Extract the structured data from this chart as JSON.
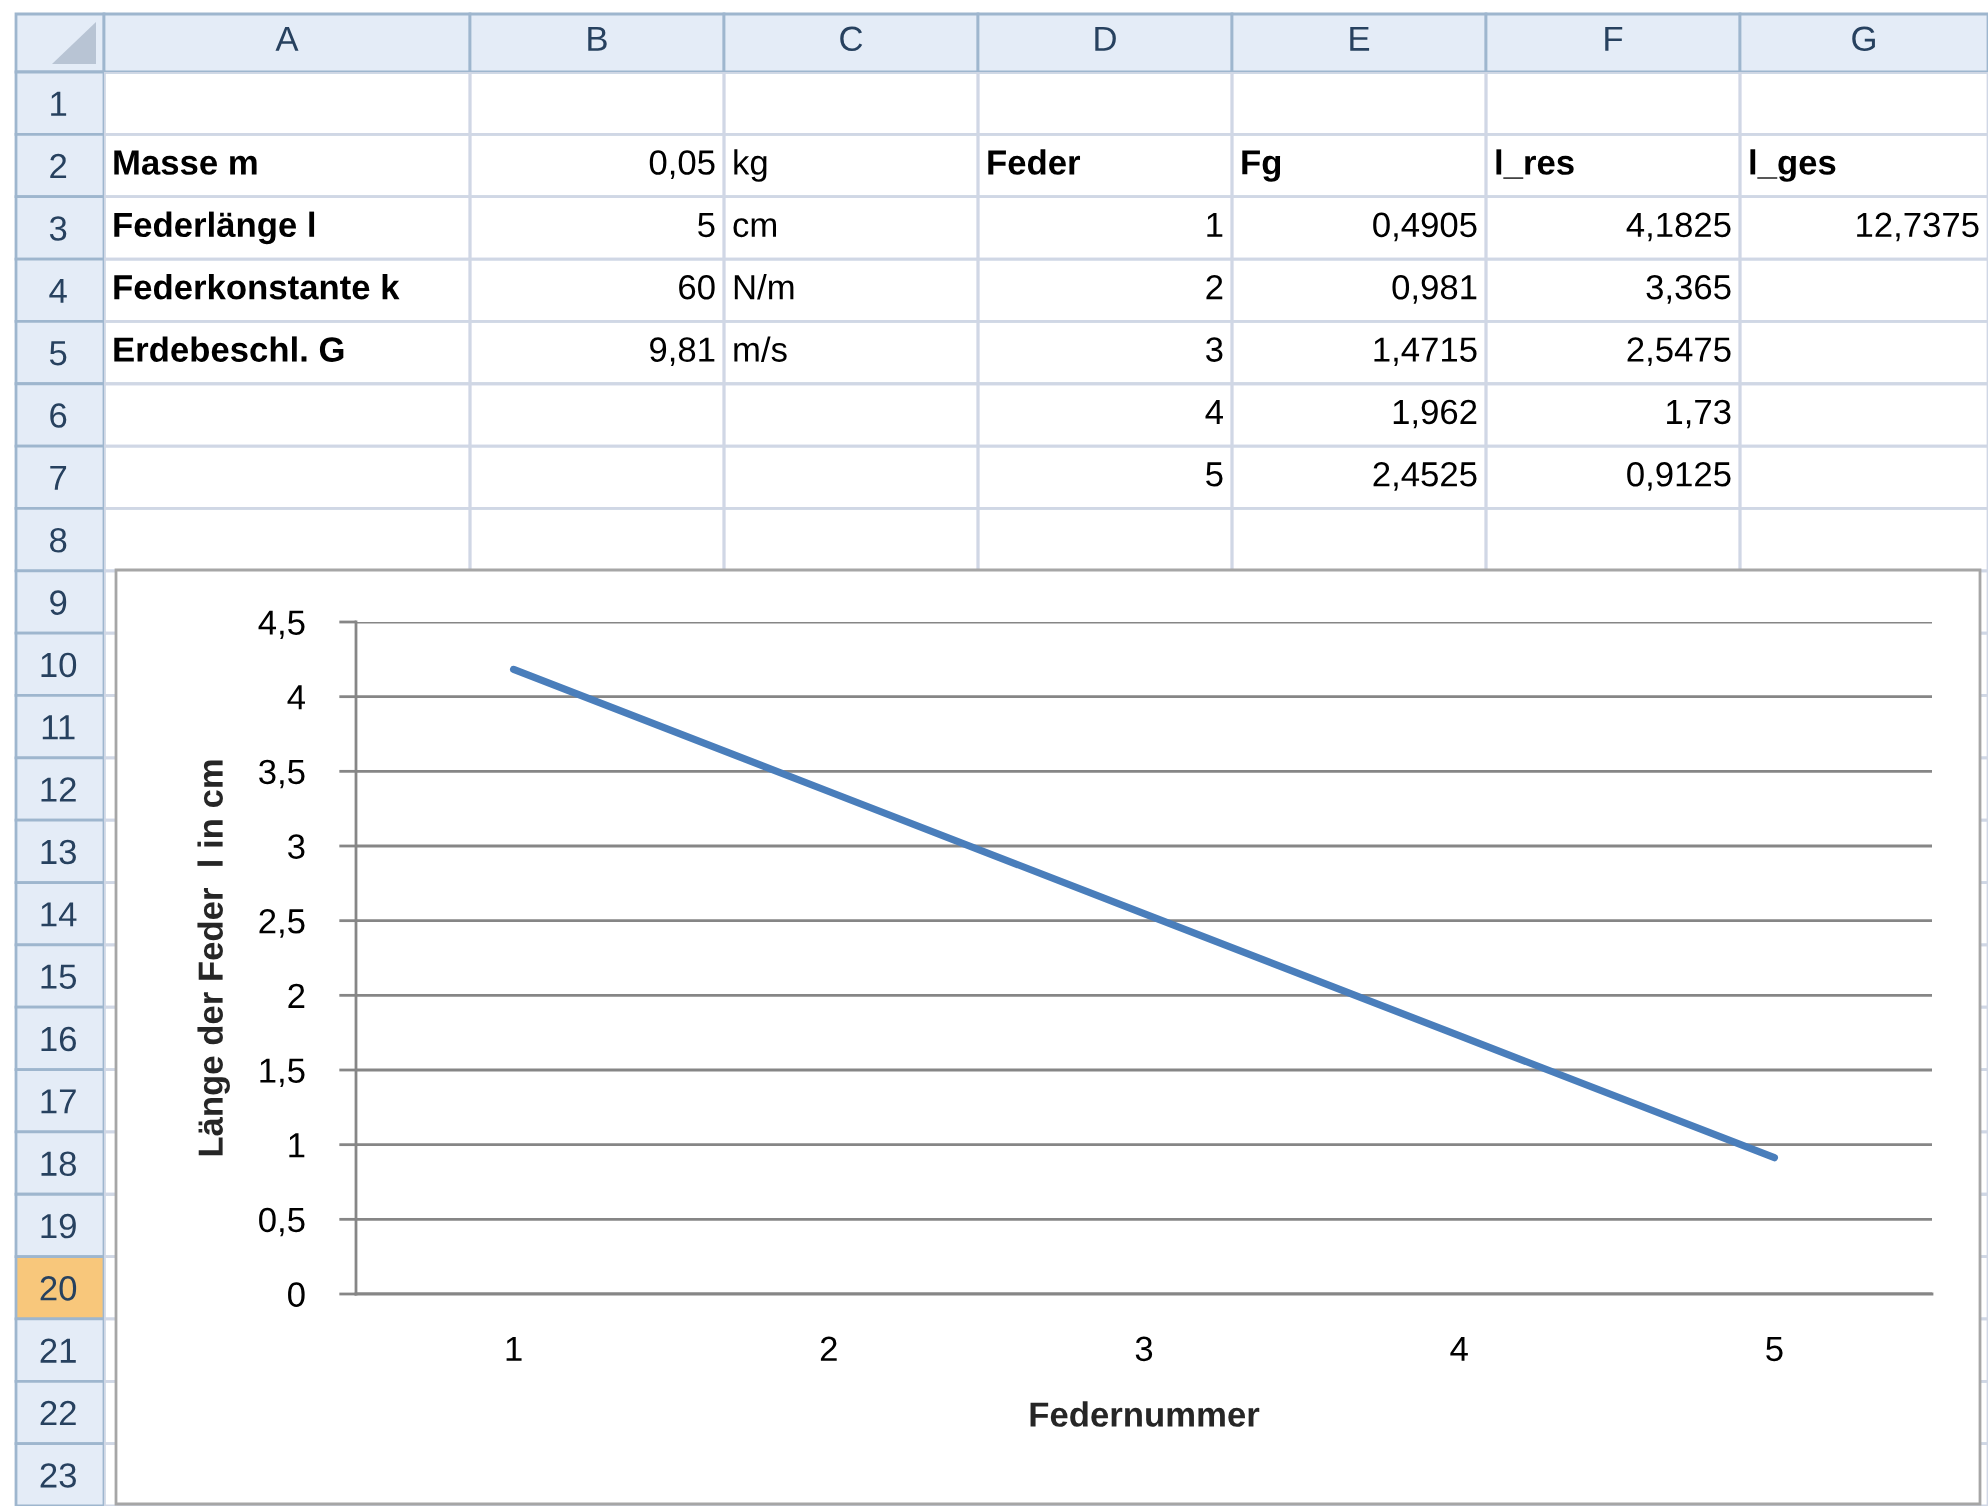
{
  "chart_data": [
    {
      "type": "heatmap",
      "categories": [
        "A",
        "B",
        "C",
        "D",
        "E",
        "F",
        "G"
      ],
      "y_categories": [
        "1",
        "2",
        "3",
        "4",
        "5",
        "6",
        "7",
        "8",
        "9",
        "10",
        "11",
        "12",
        "13",
        "14",
        "15",
        "16",
        "17",
        "18",
        "19",
        "20",
        "21",
        "22",
        "23"
      ],
      "cells": [
        [
          null,
          null,
          null,
          null,
          null,
          null,
          null
        ],
        [
          null,
          null,
          null,
          null,
          null,
          null,
          null
        ],
        [
          null,
          null,
          null,
          null,
          null,
          null,
          null
        ],
        [
          null,
          null,
          null,
          null,
          null,
          null,
          null
        ],
        [
          null,
          null,
          null,
          null,
          null,
          null,
          null
        ],
        [
          null,
          null,
          null,
          null,
          null,
          null,
          null
        ],
        [
          null,
          null,
          null,
          null,
          null,
          null,
          null
        ],
        [
          null,
          null,
          null,
          null,
          null,
          null,
          null
        ],
        [
          null,
          null,
          null,
          null,
          null,
          null,
          null
        ],
        [
          null,
          null,
          null,
          null,
          null,
          null,
          null
        ],
        [
          null,
          null,
          null,
          null,
          null,
          null,
          null
        ],
        [
          null,
          null,
          null,
          null,
          null,
          null,
          null
        ],
        [
          null,
          null,
          null,
          null,
          null,
          null,
          null
        ],
        [
          null,
          null,
          null,
          null,
          null,
          null,
          null
        ],
        [
          null,
          null,
          null,
          null,
          null,
          null,
          null
        ],
        [
          null,
          null,
          null,
          null,
          null,
          null,
          null
        ],
        [
          null,
          null,
          null,
          null,
          null,
          null,
          null
        ],
        [
          null,
          null,
          null,
          null,
          null,
          null,
          null
        ],
        [
          null,
          null,
          null,
          null,
          null,
          null,
          null
        ],
        [
          null,
          null,
          null,
          null,
          null,
          null,
          null
        ],
        [
          null,
          null,
          null,
          null,
          null,
          null,
          null
        ],
        [
          null,
          null,
          null,
          null,
          null,
          null,
          null
        ],
        [
          null,
          null,
          null,
          null,
          null,
          null,
          null
        ]
      ],
      "cell_labels": [
        [
          null,
          null,
          null,
          null,
          null,
          null,
          null
        ],
        [
          "Masse m",
          "0,05",
          "kg",
          "Feder",
          "Fg",
          "l_res",
          "l_ges"
        ],
        [
          "Federlänge l",
          "5",
          "cm",
          "1",
          "0,4905",
          "4,1825",
          "12,7375"
        ],
        [
          "Federkonstante k",
          "60",
          "N/m",
          "2",
          "0,981",
          "3,365",
          null
        ],
        [
          "Erdebeschl. G",
          "9,81",
          "m/s",
          "3",
          "1,4715",
          "2,5475",
          null
        ],
        [
          null,
          null,
          null,
          "4",
          "1,962",
          "1,73",
          null
        ],
        [
          null,
          null,
          null,
          "5",
          "2,4525",
          "0,9125",
          null
        ],
        [
          null,
          null,
          null,
          null,
          null,
          null,
          null
        ],
        [
          null,
          null,
          null,
          null,
          null,
          null,
          null
        ],
        [
          null,
          null,
          null,
          null,
          null,
          null,
          null
        ],
        [
          null,
          null,
          null,
          null,
          null,
          null,
          null
        ],
        [
          null,
          null,
          null,
          null,
          null,
          null,
          null
        ],
        [
          null,
          null,
          null,
          null,
          null,
          null,
          null
        ],
        [
          null,
          null,
          null,
          null,
          null,
          null,
          null
        ],
        [
          null,
          null,
          null,
          null,
          null,
          null,
          null
        ],
        [
          null,
          null,
          null,
          null,
          null,
          null,
          null
        ],
        [
          null,
          null,
          null,
          null,
          null,
          null,
          null
        ],
        [
          null,
          null,
          null,
          null,
          null,
          null,
          null
        ],
        [
          null,
          null,
          null,
          null,
          null,
          null,
          null
        ],
        [
          null,
          null,
          null,
          null,
          null,
          null,
          null
        ],
        [
          null,
          null,
          null,
          null,
          null,
          null,
          null
        ],
        [
          null,
          null,
          null,
          null,
          null,
          null,
          null
        ],
        [
          null,
          null,
          null,
          null,
          null,
          null,
          null
        ]
      ],
      "grid": true
    },
    {
      "type": "line",
      "categories": [
        "1",
        "2",
        "3",
        "4",
        "5"
      ],
      "values": [
        4.1825,
        3.365,
        2.5475,
        1.73,
        0.9125
      ],
      "color": "#4a7ebb",
      "xlabel": "Federnummer",
      "ylabel": "Länge der Feder  l in cm",
      "ylim": [
        0,
        4.5
      ],
      "yticks": [
        0,
        {
          "value": 0.5,
          "label": "0,5"
        },
        1,
        {
          "value": 1.5,
          "label": "1,5"
        },
        2,
        {
          "value": 2.5,
          "label": "2,5"
        },
        3,
        {
          "value": 3.5,
          "label": "3,5"
        },
        4,
        {
          "value": 4.5,
          "label": "4,5"
        }
      ],
      "grid": "y"
    }
  ]
}
